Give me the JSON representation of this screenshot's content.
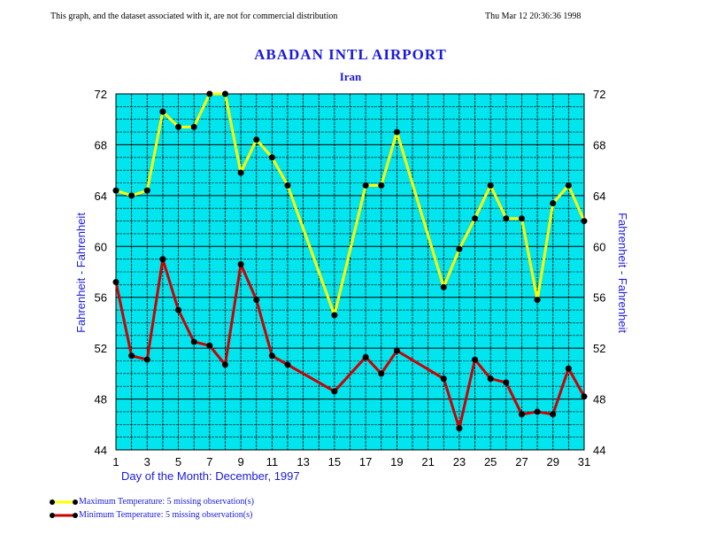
{
  "header": {
    "notice": "This graph, and the dataset associated with it, are not for commercial distribution",
    "timestamp": "Thu Mar 12 20:36:36 1998"
  },
  "chart_data": {
    "type": "line",
    "title": "ABADAN INTL AIRPORT",
    "subtitle": "Iran",
    "xlabel": "Day of the Month:  December, 1997",
    "ylabel": "Fahrenheit - Fahrenheit",
    "ylabel_right": "Fahrenheit - Fahrenheit",
    "xlim": [
      1,
      31
    ],
    "ylim": [
      44,
      72
    ],
    "x_ticks": [
      1,
      3,
      5,
      7,
      9,
      11,
      13,
      15,
      17,
      19,
      21,
      23,
      25,
      27,
      29,
      31
    ],
    "y_ticks": [
      44,
      48,
      52,
      56,
      60,
      64,
      68,
      72
    ],
    "grid": true,
    "background": "#00e5ee",
    "series": [
      {
        "name": "Maximum Temperature:  5 missing observation(s)",
        "color": "#ffff00",
        "points": [
          [
            1,
            64.4
          ],
          [
            2,
            64.0
          ],
          [
            3,
            64.4
          ],
          [
            4,
            70.6
          ],
          [
            5,
            69.4
          ],
          [
            6,
            69.4
          ],
          [
            7,
            72.0
          ],
          [
            8,
            72.0
          ],
          [
            9,
            65.8
          ],
          [
            10,
            68.4
          ],
          [
            11,
            67.0
          ],
          [
            12,
            64.8
          ],
          [
            15,
            54.6
          ],
          [
            17,
            64.8
          ],
          [
            18,
            64.8
          ],
          [
            19,
            69.0
          ],
          [
            22,
            56.8
          ],
          [
            23,
            59.8
          ],
          [
            24,
            62.2
          ],
          [
            25,
            64.8
          ],
          [
            26,
            62.2
          ],
          [
            27,
            62.2
          ],
          [
            28,
            55.8
          ],
          [
            29,
            63.4
          ],
          [
            30,
            64.8
          ],
          [
            31,
            62.0
          ]
        ]
      },
      {
        "name": "Minimum Temperature:  5 missing observation(s)",
        "color": "#cc0000",
        "points": [
          [
            1,
            57.2
          ],
          [
            2,
            51.4
          ],
          [
            3,
            51.1
          ],
          [
            4,
            59.0
          ],
          [
            5,
            55.0
          ],
          [
            6,
            52.5
          ],
          [
            7,
            52.2
          ],
          [
            8,
            50.7
          ],
          [
            9,
            58.6
          ],
          [
            10,
            55.8
          ],
          [
            11,
            51.4
          ],
          [
            12,
            50.7
          ],
          [
            15,
            48.6
          ],
          [
            17,
            51.3
          ],
          [
            18,
            50.0
          ],
          [
            19,
            51.8
          ],
          [
            22,
            49.6
          ],
          [
            23,
            45.7
          ],
          [
            24,
            51.1
          ],
          [
            25,
            49.6
          ],
          [
            26,
            49.3
          ],
          [
            27,
            46.8
          ],
          [
            28,
            47.0
          ],
          [
            29,
            46.8
          ],
          [
            30,
            50.4
          ],
          [
            31,
            48.2
          ]
        ]
      }
    ]
  }
}
